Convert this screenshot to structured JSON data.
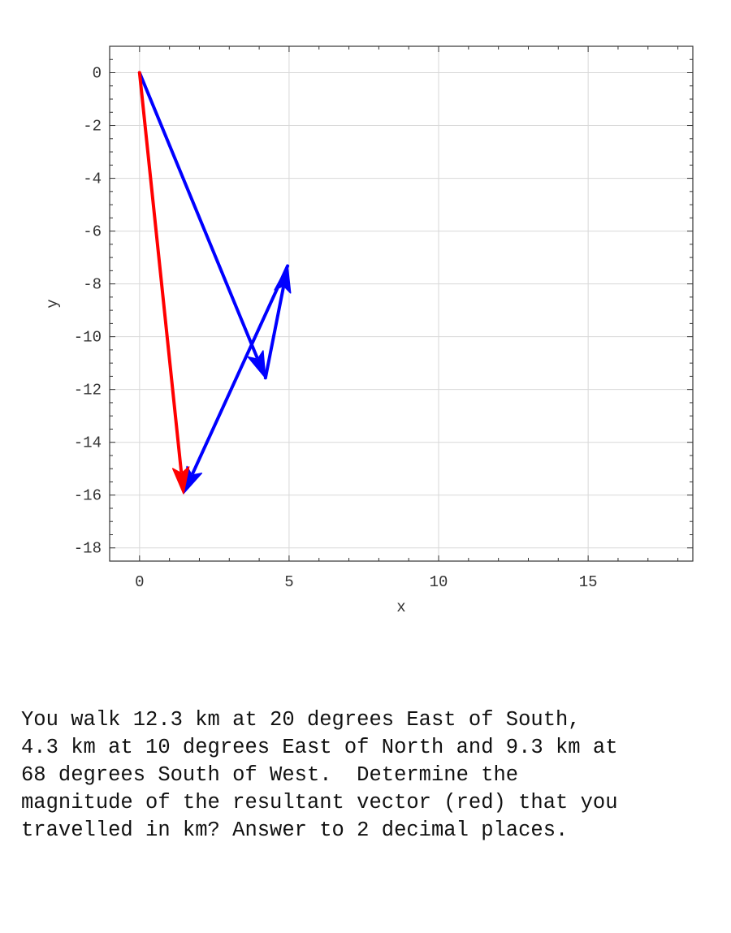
{
  "chart_data": {
    "type": "vector-plot",
    "xlabel": "x",
    "ylabel": "y",
    "xlim": [
      -1,
      18.5
    ],
    "ylim": [
      -18.5,
      1
    ],
    "xticks": [
      0,
      5,
      10,
      15
    ],
    "yticks": [
      0,
      -2,
      -4,
      -6,
      -8,
      -10,
      -12,
      -14,
      -16,
      -18
    ],
    "grid": true,
    "vectors": [
      {
        "color": "#0000ff",
        "from": [
          0,
          0
        ],
        "to": [
          4.21,
          -11.56
        ]
      },
      {
        "color": "#0000ff",
        "from": [
          4.21,
          -11.56
        ],
        "to": [
          4.95,
          -7.32
        ]
      },
      {
        "color": "#0000ff",
        "from": [
          4.95,
          -7.32
        ],
        "to": [
          1.47,
          -15.94
        ]
      },
      {
        "color": "#ff0000",
        "from": [
          0,
          0
        ],
        "to": [
          1.47,
          -15.94
        ]
      }
    ]
  },
  "question": "You walk 12.3 km at 20 degrees East of South,\n4.3 km at 10 degrees East of North and 9.3 km at\n68 degrees South of West.  Determine the\nmagnitude of the resultant vector (red) that you\ntravelled in km? Answer to 2 decimal places."
}
